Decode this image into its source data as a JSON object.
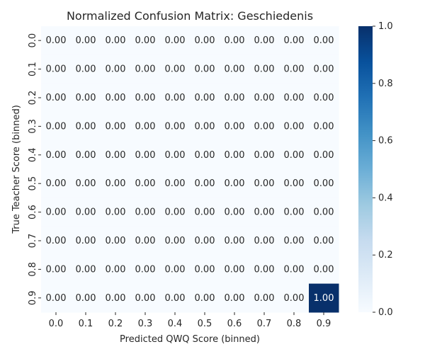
{
  "chart_data": {
    "type": "heatmap",
    "title": "Normalized Confusion Matrix: Geschiedenis",
    "xlabel": "Predicted QWQ Score (binned)",
    "ylabel": "True Teacher Score (binned)",
    "x_categories": [
      "0.0",
      "0.1",
      "0.2",
      "0.3",
      "0.4",
      "0.5",
      "0.6",
      "0.7",
      "0.8",
      "0.9"
    ],
    "y_categories": [
      "0.0",
      "0.1",
      "0.2",
      "0.3",
      "0.4",
      "0.5",
      "0.6",
      "0.7",
      "0.8",
      "0.9"
    ],
    "values": [
      [
        0,
        0,
        0,
        0,
        0,
        0,
        0,
        0,
        0,
        0
      ],
      [
        0,
        0,
        0,
        0,
        0,
        0,
        0,
        0,
        0,
        0
      ],
      [
        0,
        0,
        0,
        0,
        0,
        0,
        0,
        0,
        0,
        0
      ],
      [
        0,
        0,
        0,
        0,
        0,
        0,
        0,
        0,
        0,
        0
      ],
      [
        0,
        0,
        0,
        0,
        0,
        0,
        0,
        0,
        0,
        0
      ],
      [
        0,
        0,
        0,
        0,
        0,
        0,
        0,
        0,
        0,
        0
      ],
      [
        0,
        0,
        0,
        0,
        0,
        0,
        0,
        0,
        0,
        0
      ],
      [
        0,
        0,
        0,
        0,
        0,
        0,
        0,
        0,
        0,
        0
      ],
      [
        0,
        0,
        0,
        0,
        0,
        0,
        0,
        0,
        0,
        0
      ],
      [
        0,
        0,
        0,
        0,
        0,
        0,
        0,
        0,
        0,
        1
      ]
    ],
    "value_format": "2 decimals",
    "colormap": "Blues",
    "colorbar": {
      "min": 0.0,
      "max": 1.0,
      "ticks": [
        "0.0",
        "0.2",
        "0.4",
        "0.6",
        "0.8",
        "1.0"
      ]
    },
    "colors": {
      "low": "#f7fbff",
      "high": "#08306b",
      "text_dark": "#262626",
      "text_light": "#ffffff"
    },
    "grid": false,
    "legend": "colorbar-right"
  }
}
